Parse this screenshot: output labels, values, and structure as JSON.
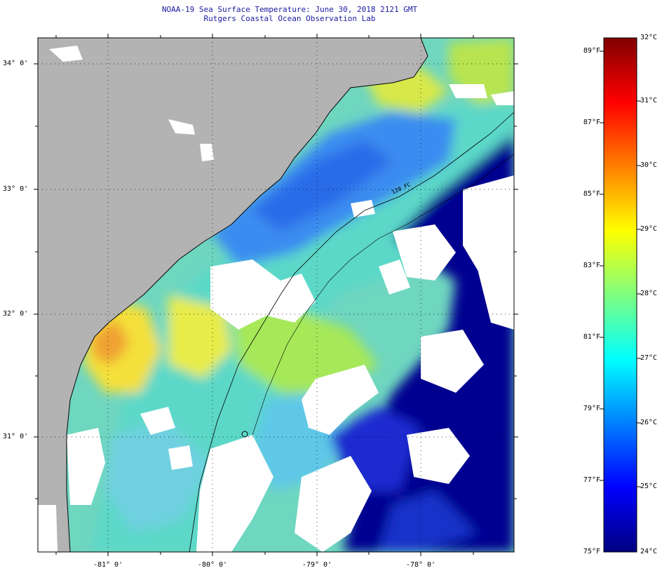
{
  "header": {
    "title_line1": "NOAA-19 Sea Surface Temperature:  June 30, 2018 2121 GMT",
    "title_line2": "Rutgers Coastal Ocean Observation Lab"
  },
  "map": {
    "latitude_labels": [
      "34° 0'",
      "33° 0'",
      "32° 0'",
      "31° 0'"
    ],
    "longitude_labels": [
      "-81° 0'",
      "-80° 0'",
      "-79° 0'",
      "-78° 0'"
    ],
    "isobath_label": "120 FC",
    "colors": {
      "land": "#b3b3b3",
      "cloud": "#ffffff",
      "coastline": "#000000"
    }
  },
  "colorbar": {
    "fahrenheit_labels": [
      "89°F",
      "87°F",
      "85°F",
      "83°F",
      "81°F",
      "79°F",
      "77°F",
      "75°F"
    ],
    "celsius_labels": [
      "32°C",
      "31°C",
      "30°C",
      "29°C",
      "28°C",
      "27°C",
      "26°C",
      "25°C",
      "24°C"
    ],
    "colors": [
      "#00007f",
      "#0000ff",
      "#007fff",
      "#00ffff",
      "#7fff7f",
      "#ffff00",
      "#ff7f00",
      "#ff0000",
      "#7f0000"
    ]
  }
}
